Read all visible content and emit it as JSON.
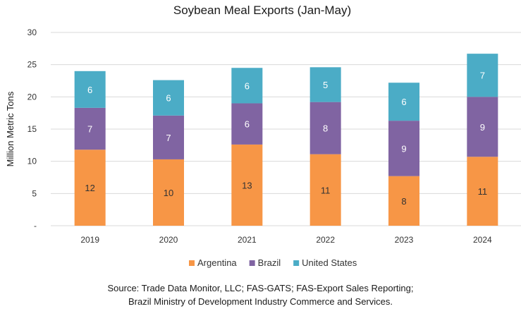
{
  "chart_data": {
    "type": "bar",
    "stacked": true,
    "title": "Soybean Meal Exports (Jan-May)",
    "ylabel": "Million Metric Tons",
    "xlabel": "",
    "ylim": [
      0,
      30
    ],
    "yticks": [
      0,
      5,
      10,
      15,
      20,
      25,
      30
    ],
    "ytick_labels": [
      "-",
      "5",
      "10",
      "15",
      "20",
      "25",
      "30"
    ],
    "grid": true,
    "legend_position": "bottom",
    "categories": [
      "2019",
      "2020",
      "2021",
      "2022",
      "2023",
      "2024"
    ],
    "series": [
      {
        "name": "Argentina",
        "color": "#f79646",
        "values": [
          11.8,
          10.3,
          12.6,
          11.1,
          7.7,
          10.7
        ],
        "labels": [
          "12",
          "10",
          "13",
          "11",
          "8",
          "11"
        ],
        "label_color": "#333333"
      },
      {
        "name": "Brazil",
        "color": "#8064a2",
        "values": [
          6.5,
          6.8,
          6.4,
          8.1,
          8.6,
          9.3
        ],
        "labels": [
          "7",
          "7",
          "6",
          "8",
          "9",
          "9"
        ],
        "label_color": "#ffffff"
      },
      {
        "name": "United States",
        "color": "#4bacc6",
        "values": [
          5.7,
          5.5,
          5.5,
          5.4,
          5.9,
          6.7
        ],
        "labels": [
          "6",
          "6",
          "6",
          "5",
          "6",
          "7"
        ],
        "label_color": "#ffffff"
      }
    ]
  },
  "source": {
    "line1": "Source: Trade Data Monitor, LLC; FAS-GATS; FAS-Export Sales Reporting;",
    "line2": "Brazil Ministry of Development Industry Commerce and Services."
  }
}
